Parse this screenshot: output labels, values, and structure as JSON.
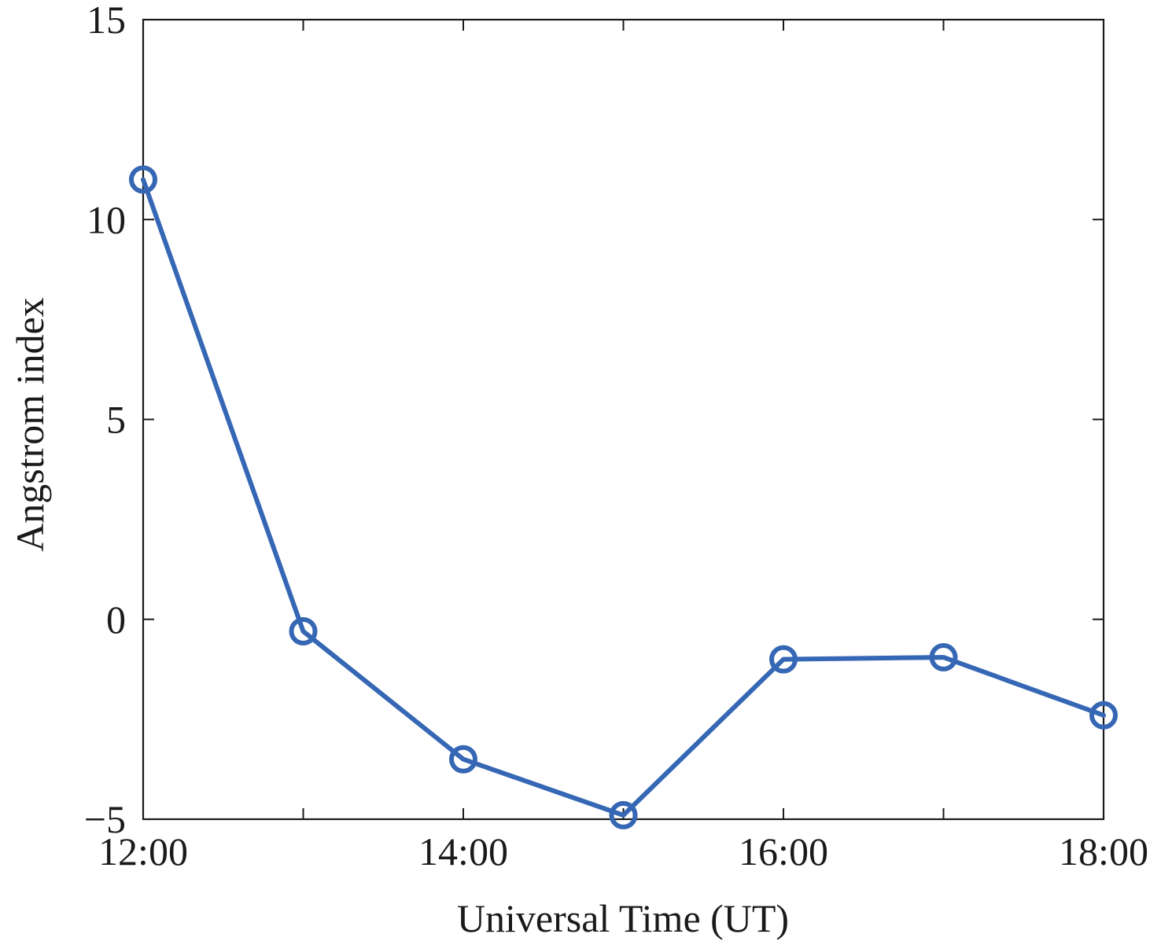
{
  "chart_data": {
    "type": "line",
    "title": "",
    "xlabel": "Universal Time (UT)",
    "ylabel": "Angstrom index",
    "x": [
      "12:00",
      "13:00",
      "14:00",
      "15:00",
      "16:00",
      "17:00",
      "18:00"
    ],
    "x_hours": [
      12,
      13,
      14,
      15,
      16,
      17,
      18
    ],
    "series": [
      {
        "values": [
          11,
          -0.3,
          -3.5,
          -4.9,
          -1.0,
          -0.95,
          -2.4
        ],
        "color": "#3567b5",
        "marker": "circle-open"
      }
    ],
    "xlim": [
      12,
      18
    ],
    "ylim": [
      -5,
      15
    ],
    "x_ticks": [
      {
        "value": 12,
        "label": "12:00"
      },
      {
        "value": 14,
        "label": "14:00"
      },
      {
        "value": 16,
        "label": "16:00"
      },
      {
        "value": 18,
        "label": "18:00"
      }
    ],
    "x_minor_ticks": [
      13,
      15,
      17
    ],
    "y_ticks": [
      {
        "value": -5,
        "label": "−5"
      },
      {
        "value": 0,
        "label": "0"
      },
      {
        "value": 5,
        "label": "5"
      },
      {
        "value": 10,
        "label": "10"
      },
      {
        "value": 15,
        "label": "15"
      }
    ],
    "grid": false,
    "box": true
  }
}
